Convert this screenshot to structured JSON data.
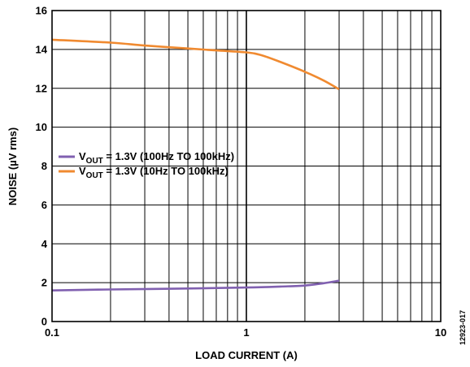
{
  "chart_data": {
    "type": "line",
    "xlabel": "LOAD CURRENT (A)",
    "ylabel": "NOISE (µV rms)",
    "x_scale": "log",
    "xlim": [
      0.1,
      10
    ],
    "ylim": [
      0,
      16
    ],
    "x_ticks": [
      {
        "value": 0.1,
        "label": "0.1"
      },
      {
        "value": 1,
        "label": "1"
      },
      {
        "value": 10,
        "label": "10"
      }
    ],
    "y_ticks": [
      0,
      2,
      4,
      6,
      8,
      10,
      12,
      14,
      16
    ],
    "grid": true,
    "legend_position": "middle-left",
    "series": [
      {
        "legend_main": "V",
        "legend_sub": "OUT",
        "legend_rest": " = 1.3V (100Hz TO 100kHz)",
        "color": "#8060b0",
        "x": [
          0.1,
          0.2,
          0.5,
          1,
          1.5,
          2,
          2.5,
          3
        ],
        "y": [
          1.6,
          1.65,
          1.7,
          1.75,
          1.8,
          1.85,
          1.97,
          2.1
        ]
      },
      {
        "legend_main": "V",
        "legend_sub": "OUT",
        "legend_rest": " = 1.3V (10Hz TO 100kHz)",
        "color": "#f08a30",
        "x": [
          0.1,
          0.2,
          0.3,
          0.5,
          0.7,
          1,
          1.2,
          1.5,
          2,
          2.5,
          3
        ],
        "y": [
          14.5,
          14.35,
          14.2,
          14.05,
          13.95,
          13.85,
          13.7,
          13.35,
          12.85,
          12.4,
          11.95
        ]
      }
    ],
    "figure_id": "12923-017"
  }
}
